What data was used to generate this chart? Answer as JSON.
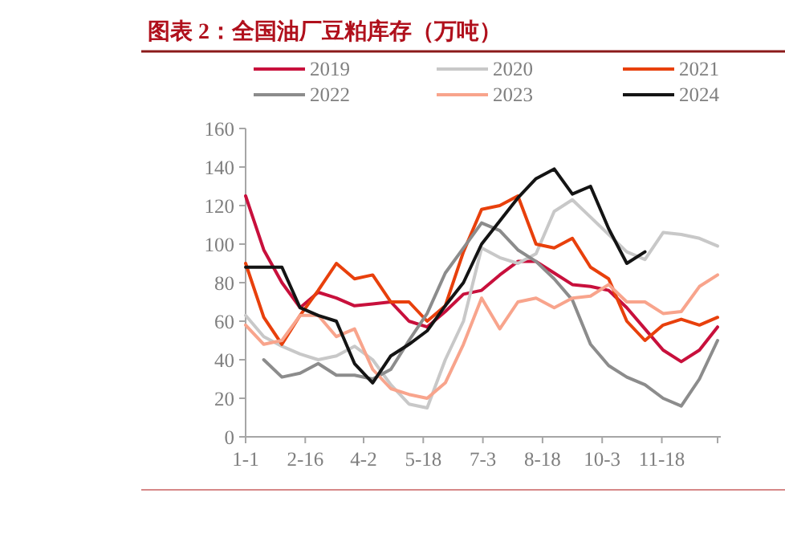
{
  "chart_data": {
    "type": "line",
    "title": "图表 2：全国油厂豆粕库存（万吨）",
    "x": [
      "--01-01",
      "--01-15",
      "--01-29",
      "--02-12",
      "--02-26",
      "--03-12",
      "--03-26",
      "--04-09",
      "--04-23",
      "--05-07",
      "--05-21",
      "--06-04",
      "--06-18",
      "--07-02",
      "--07-16",
      "--07-30",
      "--08-13",
      "--08-27",
      "--09-10",
      "--09-24",
      "--10-08",
      "--10-22",
      "--11-05",
      "--11-19",
      "--12-03",
      "--12-17",
      "--12-31"
    ],
    "series": [
      {
        "name": "2019",
        "color": "#c8103c",
        "values": [
          125,
          97,
          80,
          67,
          75,
          72,
          68,
          69,
          70,
          60,
          57,
          65,
          74,
          76,
          84,
          91,
          91,
          85,
          79,
          78,
          76,
          67,
          56,
          45,
          39,
          45,
          57
        ]
      },
      {
        "name": "2020",
        "color": "#c8c8c8",
        "values": [
          63,
          52,
          47,
          43,
          40,
          42,
          47,
          40,
          27,
          17,
          15,
          40,
          60,
          98,
          93,
          90,
          95,
          117,
          123,
          114,
          105,
          96,
          92,
          106,
          105,
          103,
          99
        ]
      },
      {
        "name": "2021",
        "color": "#e8400c",
        "values": [
          90,
          62,
          48,
          63,
          76,
          90,
          82,
          84,
          70,
          70,
          60,
          68,
          96,
          118,
          120,
          125,
          100,
          98,
          103,
          88,
          82,
          60,
          50,
          58,
          61,
          58,
          62
        ]
      },
      {
        "name": "2022",
        "color": "#8c8c8c",
        "values": [
          null,
          40,
          31,
          33,
          38,
          32,
          32,
          30,
          35,
          50,
          64,
          85,
          98,
          111,
          107,
          97,
          91,
          82,
          71,
          48,
          37,
          31,
          27,
          20,
          16,
          30,
          50
        ]
      },
      {
        "name": "2023",
        "color": "#f8a48c",
        "values": [
          58,
          48,
          50,
          63,
          63,
          52,
          56,
          35,
          25,
          22,
          20,
          28,
          48,
          72,
          56,
          70,
          72,
          67,
          72,
          73,
          79,
          70,
          70,
          64,
          65,
          78,
          84
        ]
      },
      {
        "name": "2024",
        "color": "#141414",
        "values": [
          88,
          88,
          88,
          67,
          63,
          60,
          38,
          28,
          42,
          48,
          55,
          68,
          80,
          100,
          112,
          124,
          134,
          139,
          126,
          130,
          108,
          90,
          96,
          null,
          null,
          null,
          null
        ]
      }
    ],
    "xlim": [
      "--01-01",
      "--12-31"
    ],
    "xticks": [
      {
        "value": "--01-01",
        "label": "1-1"
      },
      {
        "value": "--02-16",
        "label": "2-16"
      },
      {
        "value": "--04-02",
        "label": "4-2"
      },
      {
        "value": "--05-18",
        "label": "5-18"
      },
      {
        "value": "--07-03",
        "label": "7-3"
      },
      {
        "value": "--08-18",
        "label": "8-18"
      },
      {
        "value": "--10-03",
        "label": "10-3"
      },
      {
        "value": "--11-18",
        "label": "11-18"
      },
      {
        "value": "--12-31",
        "label": null
      }
    ],
    "ylim": [
      0,
      160
    ],
    "yticks": [
      0,
      20,
      40,
      60,
      80,
      100,
      120,
      140,
      160
    ],
    "legend": "top",
    "grid": false,
    "marker": "none",
    "line_style": "solid"
  }
}
